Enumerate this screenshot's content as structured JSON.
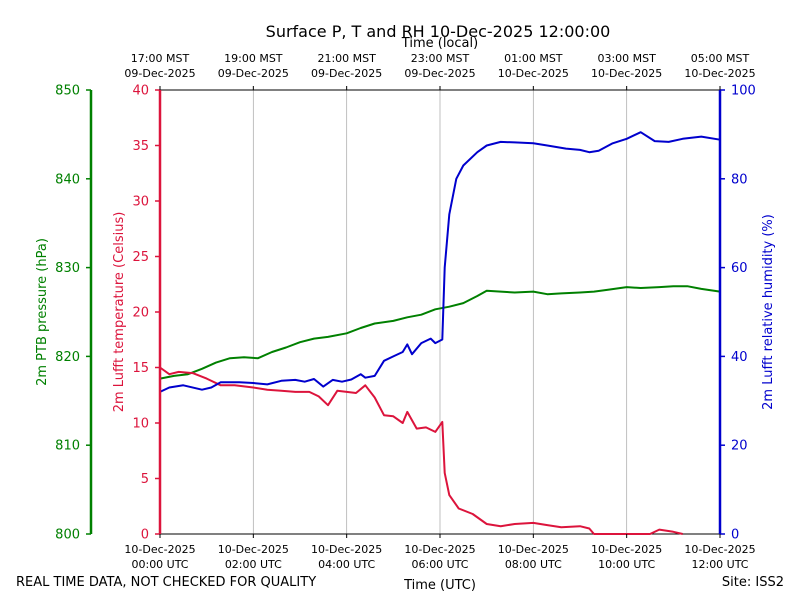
{
  "chart_data": {
    "type": "line",
    "title": "Surface P, T and RH 10-Dec-2025 12:00:00",
    "top_axis": {
      "label": "Time (local)",
      "ticks": [
        {
          "line1": "17:00 MST",
          "line2": "09-Dec-2025",
          "hours": 0
        },
        {
          "line1": "19:00 MST",
          "line2": "09-Dec-2025",
          "hours": 2
        },
        {
          "line1": "21:00 MST",
          "line2": "09-Dec-2025",
          "hours": 4
        },
        {
          "line1": "23:00 MST",
          "line2": "09-Dec-2025",
          "hours": 6
        },
        {
          "line1": "01:00 MST",
          "line2": "10-Dec-2025",
          "hours": 8
        },
        {
          "line1": "03:00 MST",
          "line2": "10-Dec-2025",
          "hours": 10
        },
        {
          "line1": "05:00 MST",
          "line2": "10-Dec-2025",
          "hours": 12
        }
      ]
    },
    "x_axis": {
      "label": "Time (UTC)",
      "range_hours": [
        0,
        12
      ],
      "ticks": [
        {
          "line1": "10-Dec-2025",
          "line2": "00:00 UTC",
          "hours": 0
        },
        {
          "line1": "10-Dec-2025",
          "line2": "02:00 UTC",
          "hours": 2
        },
        {
          "line1": "10-Dec-2025",
          "line2": "04:00 UTC",
          "hours": 4
        },
        {
          "line1": "10-Dec-2025",
          "line2": "06:00 UTC",
          "hours": 6
        },
        {
          "line1": "10-Dec-2025",
          "line2": "08:00 UTC",
          "hours": 8
        },
        {
          "line1": "10-Dec-2025",
          "line2": "10:00 UTC",
          "hours": 10
        },
        {
          "line1": "10-Dec-2025",
          "line2": "12:00 UTC",
          "hours": 12
        }
      ],
      "grid": true
    },
    "y_axes": [
      {
        "key": "pressure",
        "label": "2m PTB pressure (hPa)",
        "color": "#008000",
        "range": [
          800,
          850
        ],
        "ticks": [
          800,
          810,
          820,
          830,
          840,
          850
        ],
        "side": "far-left"
      },
      {
        "key": "temperature",
        "label": "2m Lufft temperature (Celsius)",
        "color": "#dc143c",
        "range": [
          0,
          40
        ],
        "ticks": [
          0,
          5,
          10,
          15,
          20,
          25,
          30,
          35,
          40
        ],
        "side": "left"
      },
      {
        "key": "humidity",
        "label": "2m Lufft relative humidity (%)",
        "color": "#0000cd",
        "range": [
          0,
          100
        ],
        "ticks": [
          0,
          20,
          40,
          60,
          80,
          100
        ],
        "side": "right"
      }
    ],
    "series": [
      {
        "name": "2m PTB pressure (hPa)",
        "axis": "pressure",
        "color": "#008000",
        "points": [
          [
            0,
            817.5
          ],
          [
            0.3,
            817.8
          ],
          [
            0.6,
            818
          ],
          [
            0.9,
            818.6
          ],
          [
            1.2,
            819.3
          ],
          [
            1.5,
            819.8
          ],
          [
            1.8,
            819.9
          ],
          [
            2.1,
            819.8
          ],
          [
            2.4,
            820.5
          ],
          [
            2.7,
            821
          ],
          [
            3.0,
            821.6
          ],
          [
            3.3,
            822
          ],
          [
            3.6,
            822.2
          ],
          [
            4.0,
            822.6
          ],
          [
            4.3,
            823.2
          ],
          [
            4.6,
            823.7
          ],
          [
            5.0,
            824
          ],
          [
            5.3,
            824.4
          ],
          [
            5.6,
            824.7
          ],
          [
            5.9,
            825.3
          ],
          [
            6.2,
            825.6
          ],
          [
            6.5,
            826
          ],
          [
            6.8,
            826.8
          ],
          [
            7.0,
            827.4
          ],
          [
            7.3,
            827.3
          ],
          [
            7.6,
            827.2
          ],
          [
            8.0,
            827.3
          ],
          [
            8.3,
            827
          ],
          [
            8.6,
            827.1
          ],
          [
            9.0,
            827.2
          ],
          [
            9.3,
            827.3
          ],
          [
            9.6,
            827.5
          ],
          [
            10.0,
            827.8
          ],
          [
            10.3,
            827.7
          ],
          [
            10.7,
            827.8
          ],
          [
            11.0,
            827.9
          ],
          [
            11.3,
            827.9
          ],
          [
            11.6,
            827.6
          ],
          [
            12.0,
            827.3
          ]
        ]
      },
      {
        "name": "2m Lufft temperature (Celsius)",
        "axis": "temperature",
        "color": "#dc143c",
        "points": [
          [
            0,
            15
          ],
          [
            0.2,
            14.4
          ],
          [
            0.4,
            14.6
          ],
          [
            0.7,
            14.5
          ],
          [
            1.0,
            14.0
          ],
          [
            1.3,
            13.4
          ],
          [
            1.6,
            13.4
          ],
          [
            2.0,
            13.2
          ],
          [
            2.3,
            13.0
          ],
          [
            2.6,
            12.9
          ],
          [
            2.9,
            12.8
          ],
          [
            3.2,
            12.8
          ],
          [
            3.4,
            12.4
          ],
          [
            3.6,
            11.6
          ],
          [
            3.8,
            12.9
          ],
          [
            4.0,
            12.8
          ],
          [
            4.2,
            12.7
          ],
          [
            4.4,
            13.4
          ],
          [
            4.6,
            12.3
          ],
          [
            4.8,
            10.7
          ],
          [
            5.0,
            10.6
          ],
          [
            5.2,
            10.0
          ],
          [
            5.3,
            11.0
          ],
          [
            5.5,
            9.5
          ],
          [
            5.7,
            9.6
          ],
          [
            5.9,
            9.2
          ],
          [
            6.05,
            10.1
          ],
          [
            6.1,
            5.5
          ],
          [
            6.2,
            3.5
          ],
          [
            6.4,
            2.3
          ],
          [
            6.7,
            1.8
          ],
          [
            7.0,
            0.9
          ],
          [
            7.3,
            0.7
          ],
          [
            7.6,
            0.9
          ],
          [
            8.0,
            1.0
          ],
          [
            8.3,
            0.8
          ],
          [
            8.6,
            0.6
          ],
          [
            9.0,
            0.7
          ],
          [
            9.2,
            0.5
          ],
          [
            9.3,
            0.0
          ],
          [
            10.5,
            0.0
          ],
          [
            10.7,
            0.4
          ],
          [
            11.0,
            0.2
          ],
          [
            11.2,
            0.0
          ]
        ]
      },
      {
        "name": "2m Lufft relative humidity (%)",
        "axis": "humidity",
        "color": "#0000cd",
        "points": [
          [
            0,
            32
          ],
          [
            0.2,
            33
          ],
          [
            0.5,
            33.5
          ],
          [
            0.9,
            32.5
          ],
          [
            1.1,
            33
          ],
          [
            1.3,
            34.2
          ],
          [
            1.7,
            34.2
          ],
          [
            2.0,
            34.0
          ],
          [
            2.3,
            33.7
          ],
          [
            2.6,
            34.5
          ],
          [
            2.9,
            34.7
          ],
          [
            3.1,
            34.3
          ],
          [
            3.3,
            34.9
          ],
          [
            3.5,
            33.2
          ],
          [
            3.7,
            34.7
          ],
          [
            3.9,
            34.3
          ],
          [
            4.1,
            34.8
          ],
          [
            4.3,
            36
          ],
          [
            4.4,
            35.2
          ],
          [
            4.6,
            35.6
          ],
          [
            4.8,
            39
          ],
          [
            5.0,
            40
          ],
          [
            5.2,
            41
          ],
          [
            5.3,
            42.7
          ],
          [
            5.4,
            40.5
          ],
          [
            5.6,
            43
          ],
          [
            5.8,
            44
          ],
          [
            5.9,
            43
          ],
          [
            6.05,
            43.8
          ],
          [
            6.1,
            60
          ],
          [
            6.2,
            72
          ],
          [
            6.35,
            80
          ],
          [
            6.5,
            83
          ],
          [
            6.8,
            86
          ],
          [
            7.0,
            87.5
          ],
          [
            7.3,
            88.3
          ],
          [
            7.6,
            88.2
          ],
          [
            8.0,
            88
          ],
          [
            8.3,
            87.5
          ],
          [
            8.7,
            86.8
          ],
          [
            9.0,
            86.5
          ],
          [
            9.2,
            86
          ],
          [
            9.4,
            86.3
          ],
          [
            9.7,
            88
          ],
          [
            10.0,
            89
          ],
          [
            10.3,
            90.5
          ],
          [
            10.6,
            88.5
          ],
          [
            10.9,
            88.3
          ],
          [
            11.2,
            89
          ],
          [
            11.6,
            89.5
          ],
          [
            12.0,
            88.8
          ]
        ]
      }
    ]
  },
  "footer": {
    "left": "REAL TIME DATA, NOT CHECKED FOR QUALITY",
    "right": "Site: ISS2"
  }
}
